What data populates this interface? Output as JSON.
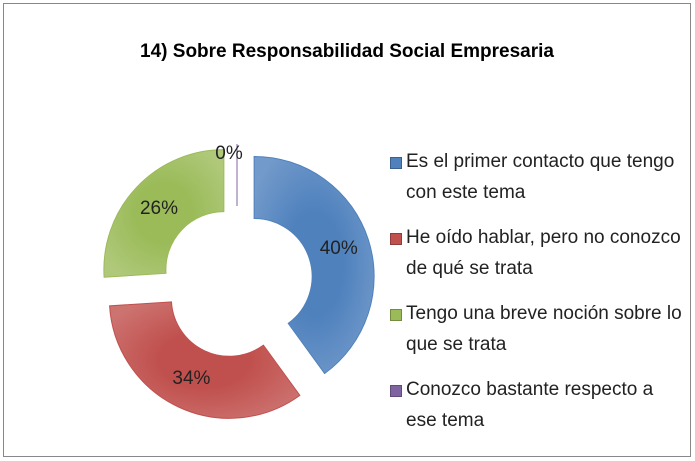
{
  "chart_data": {
    "type": "doughnut",
    "title": "14) Sobre Responsabilidad Social Empresaria",
    "categories": [
      "Es el primer contacto que tengo con este tema",
      "He oído hablar, pero no conozco de qué se trata",
      "Tengo una breve noción sobre lo que se trata",
      "Conozco bastante respecto a ese tema"
    ],
    "values": [
      40,
      34,
      26,
      0
    ],
    "value_labels": [
      "40%",
      "34%",
      "26%",
      "0%"
    ],
    "colors": [
      "#4f81bd",
      "#c0504d",
      "#9bbb59",
      "#8064a2"
    ],
    "legend": "right"
  }
}
